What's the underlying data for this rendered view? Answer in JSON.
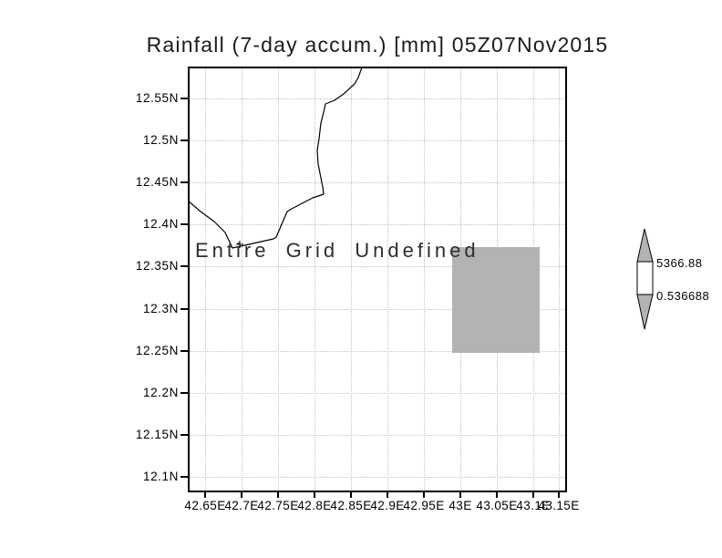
{
  "title": "Rainfall (7-day accum.) [mm] 05Z07Nov2015",
  "map": {
    "message": "Entire Grid Undefined",
    "lat_ticks": [
      "12.55N",
      "12.5N",
      "12.45N",
      "12.4N",
      "12.35N",
      "12.3N",
      "12.25N",
      "12.2N",
      "12.15N",
      "12.1N"
    ],
    "lon_ticks": [
      "42.65E",
      "42.7E",
      "42.75E",
      "42.8E",
      "42.85E",
      "42.9E",
      "42.95E",
      "43E",
      "43.05E",
      "43.1E",
      "43.15E"
    ]
  },
  "colorbar": {
    "max_label": "5366.88",
    "min_label": "0.536688"
  },
  "colors": {
    "background": "#ffffff",
    "frame": "#000000",
    "gridline": "#c2c2c2",
    "coastline": "#000000",
    "undefined_cell_fill": "#b3b3b3",
    "colorbar_arrow_fill": "#b3b3b3",
    "text": "#000000"
  },
  "chart_data": {
    "type": "heatmap",
    "title": "Rainfall (7-day accum.) [mm] 05Z07Nov2015",
    "variable": "Rainfall (7-day accum.)",
    "units": "mm",
    "valid_time": "05Z07Nov2015",
    "status_annotation": "Entire Grid Undefined",
    "x_axis": {
      "tick_labels": [
        "42.65E",
        "42.7E",
        "42.75E",
        "42.8E",
        "42.85E",
        "42.9E",
        "42.95E",
        "43E",
        "43.05E",
        "43.1E",
        "43.15E"
      ],
      "range_deg_east": [
        42.625,
        43.15
      ]
    },
    "y_axis": {
      "tick_labels": [
        "12.55N",
        "12.5N",
        "12.45N",
        "12.4N",
        "12.35N",
        "12.3N",
        "12.25N",
        "12.2N",
        "12.15N",
        "12.1N"
      ],
      "range_deg_north": [
        12.085,
        12.59
      ]
    },
    "grid": "dotted",
    "legend_position": "right",
    "colorbar": {
      "min": 0.536688,
      "max": 5366.88,
      "orientation": "vertical"
    },
    "series": [],
    "undefined_shaded_cell": {
      "lon_deg_east": [
        42.99,
        43.11
      ],
      "lat_deg_north": [
        12.25,
        12.375
      ]
    }
  }
}
